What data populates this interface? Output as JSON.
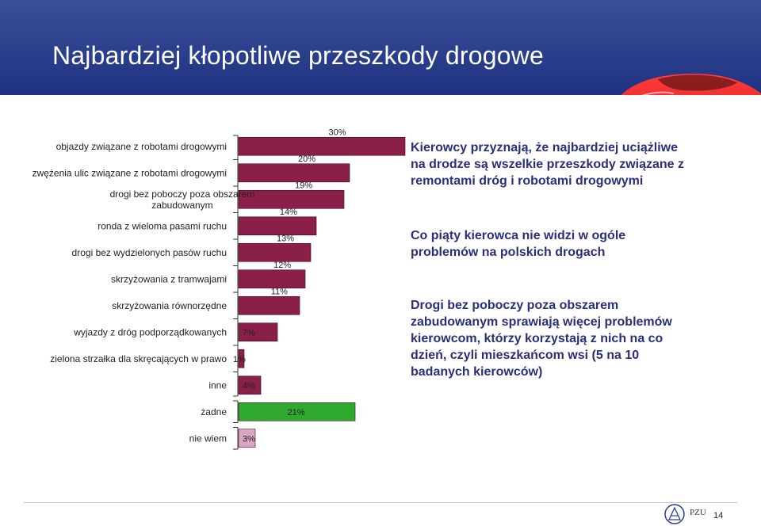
{
  "title": "Najbardziej kłopotliwe przeszkody drogowe",
  "chart_data": {
    "type": "bar",
    "orientation": "horizontal",
    "categories": [
      [
        "objazdy związane z robotami drogowymi"
      ],
      [
        "zwężenia ulic związane z robotami drogowymi"
      ],
      [
        "drogi bez poboczy poza obszarem",
        "zabudowanym"
      ],
      [
        "ronda z wieloma pasami ruchu"
      ],
      [
        "drogi bez wydzielonych pasów ruchu"
      ],
      [
        "skrzyżowania z tramwajami"
      ],
      [
        "skrzyżowania równorzędne"
      ],
      [
        "wyjazdy z dróg podporządkowanych"
      ],
      [
        "zielona strzałka dla skręcających w prawo"
      ],
      [
        "inne"
      ],
      [
        "żadne"
      ],
      [
        "nie wiem"
      ]
    ],
    "values": [
      30,
      20,
      19,
      14,
      13,
      12,
      11,
      7,
      1,
      4,
      21,
      3
    ],
    "value_labels": [
      "30%",
      "20%",
      "19%",
      "14%",
      "13%",
      "12%",
      "11%",
      "7%",
      "1%",
      "4%",
      "21%",
      "3%"
    ],
    "unit": "%",
    "xlim": [
      0,
      30
    ],
    "colors": {
      "main_bar": "#8a1f4a",
      "none_bar": "#2faa2f",
      "dont_know_bar": "#d9a8c0"
    }
  },
  "side_text": {
    "p1": "Kierowcy przyznają, że najbardziej uciążliwe na drodze są wszelkie przeszkody związane z remontami dróg i robotami drogowymi",
    "p2": "Co piąty kierowca nie widzi w ogóle problemów na polskich drogach",
    "p3": "Drogi bez poboczy poza obszarem zabudowanym sprawiają więcej problemów kierowcom, którzy korzystają z nich na co dzień, czyli mieszkańcom wsi (5 na 10 badanych kierowców)"
  },
  "footer": {
    "logo_text": "PZU",
    "page_number": "14"
  }
}
